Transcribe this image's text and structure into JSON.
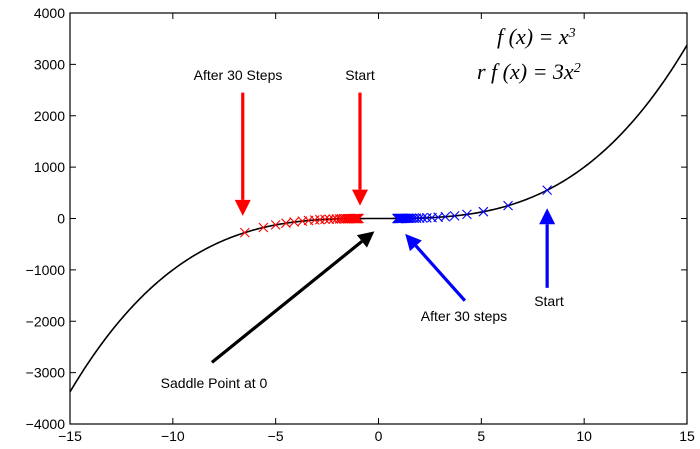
{
  "chart_data": {
    "type": "line",
    "xlim": [
      -15,
      15
    ],
    "ylim": [
      -4000,
      4000
    ],
    "x_ticks": [
      -15,
      -10,
      -5,
      0,
      5,
      10,
      15
    ],
    "y_ticks": [
      -4000,
      -3000,
      -2000,
      -1000,
      0,
      1000,
      2000,
      3000,
      4000
    ],
    "x_tick_labels": [
      "−15",
      "−10",
      "−5",
      "0",
      "5",
      "10",
      "15"
    ],
    "y_tick_labels": [
      "−4000",
      "−3000",
      "−2000",
      "−1000",
      "0",
      "1000",
      "2000",
      "3000",
      "4000"
    ],
    "grid": false,
    "curve": {
      "function": "x^3",
      "x": [
        -15,
        -14,
        -13,
        -12,
        -11,
        -10,
        -9,
        -8,
        -7,
        -6,
        -5,
        -4,
        -3,
        -2,
        -1,
        0,
        1,
        2,
        3,
        4,
        5,
        6,
        7,
        8,
        9,
        10,
        11,
        12,
        13,
        14,
        15
      ],
      "y": [
        -3375,
        -2744,
        -2197,
        -1728,
        -1331,
        -1000,
        -729,
        -512,
        -343,
        -216,
        -125,
        -64,
        -27,
        -8,
        -1,
        0,
        1,
        8,
        27,
        64,
        125,
        216,
        343,
        512,
        729,
        1000,
        1331,
        1728,
        2197,
        2744,
        3375
      ],
      "color": "#000000"
    },
    "series": [
      {
        "color": "#ff0000",
        "marker": "x",
        "x": [
          -6.5,
          -5.6,
          -5.0,
          -4.5,
          -4.1,
          -3.7,
          -3.4,
          -3.1,
          -2.85,
          -2.6,
          -2.4,
          -2.2,
          -2.05,
          -1.9,
          -1.8,
          -1.7,
          -1.6,
          -1.52,
          -1.45,
          -1.38,
          -1.32,
          -1.27,
          -1.22,
          -1.18,
          -1.14,
          -1.1,
          -1.07,
          -1.04,
          -1.01,
          -0.98,
          -0.95
        ]
      },
      {
        "color": "#0000ff",
        "marker": "x",
        "x": [
          8.2,
          6.3,
          5.1,
          4.3,
          3.7,
          3.25,
          2.9,
          2.6,
          2.35,
          2.15,
          2.0,
          1.85,
          1.72,
          1.62,
          1.53,
          1.45,
          1.38,
          1.32,
          1.27,
          1.22,
          1.18,
          1.14,
          1.1,
          1.07,
          1.04,
          1.01,
          0.98,
          0.96,
          0.94,
          0.92,
          0.9
        ]
      }
    ],
    "annotations": [
      {
        "text": "After 30 Steps",
        "color": "#ff0000",
        "arrow_from": [
          -6.6,
          2450
        ],
        "arrow_to": [
          -6.6,
          50
        ]
      },
      {
        "text": "Start",
        "color": "#ff0000",
        "arrow_from": [
          -0.9,
          2450
        ],
        "arrow_to": [
          -0.9,
          250
        ]
      },
      {
        "text": "Saddle Point at 0",
        "color": "#000000",
        "arrow_from": [
          -8.1,
          -2800
        ],
        "arrow_to": [
          -0.2,
          -250
        ]
      },
      {
        "text": "After 30 steps",
        "color": "#0000ff",
        "arrow_from": [
          4.2,
          -1600
        ],
        "arrow_to": [
          1.3,
          -300
        ]
      },
      {
        "text": "Start",
        "color": "#0000ff",
        "arrow_from": [
          8.2,
          -1350
        ],
        "arrow_to": [
          8.2,
          200
        ]
      }
    ],
    "equations": {
      "line1_left": "f (x)  =  x",
      "line1_sup": "3",
      "line2_left": "r  f (x)  =  3x",
      "line2_sup": "2"
    }
  }
}
